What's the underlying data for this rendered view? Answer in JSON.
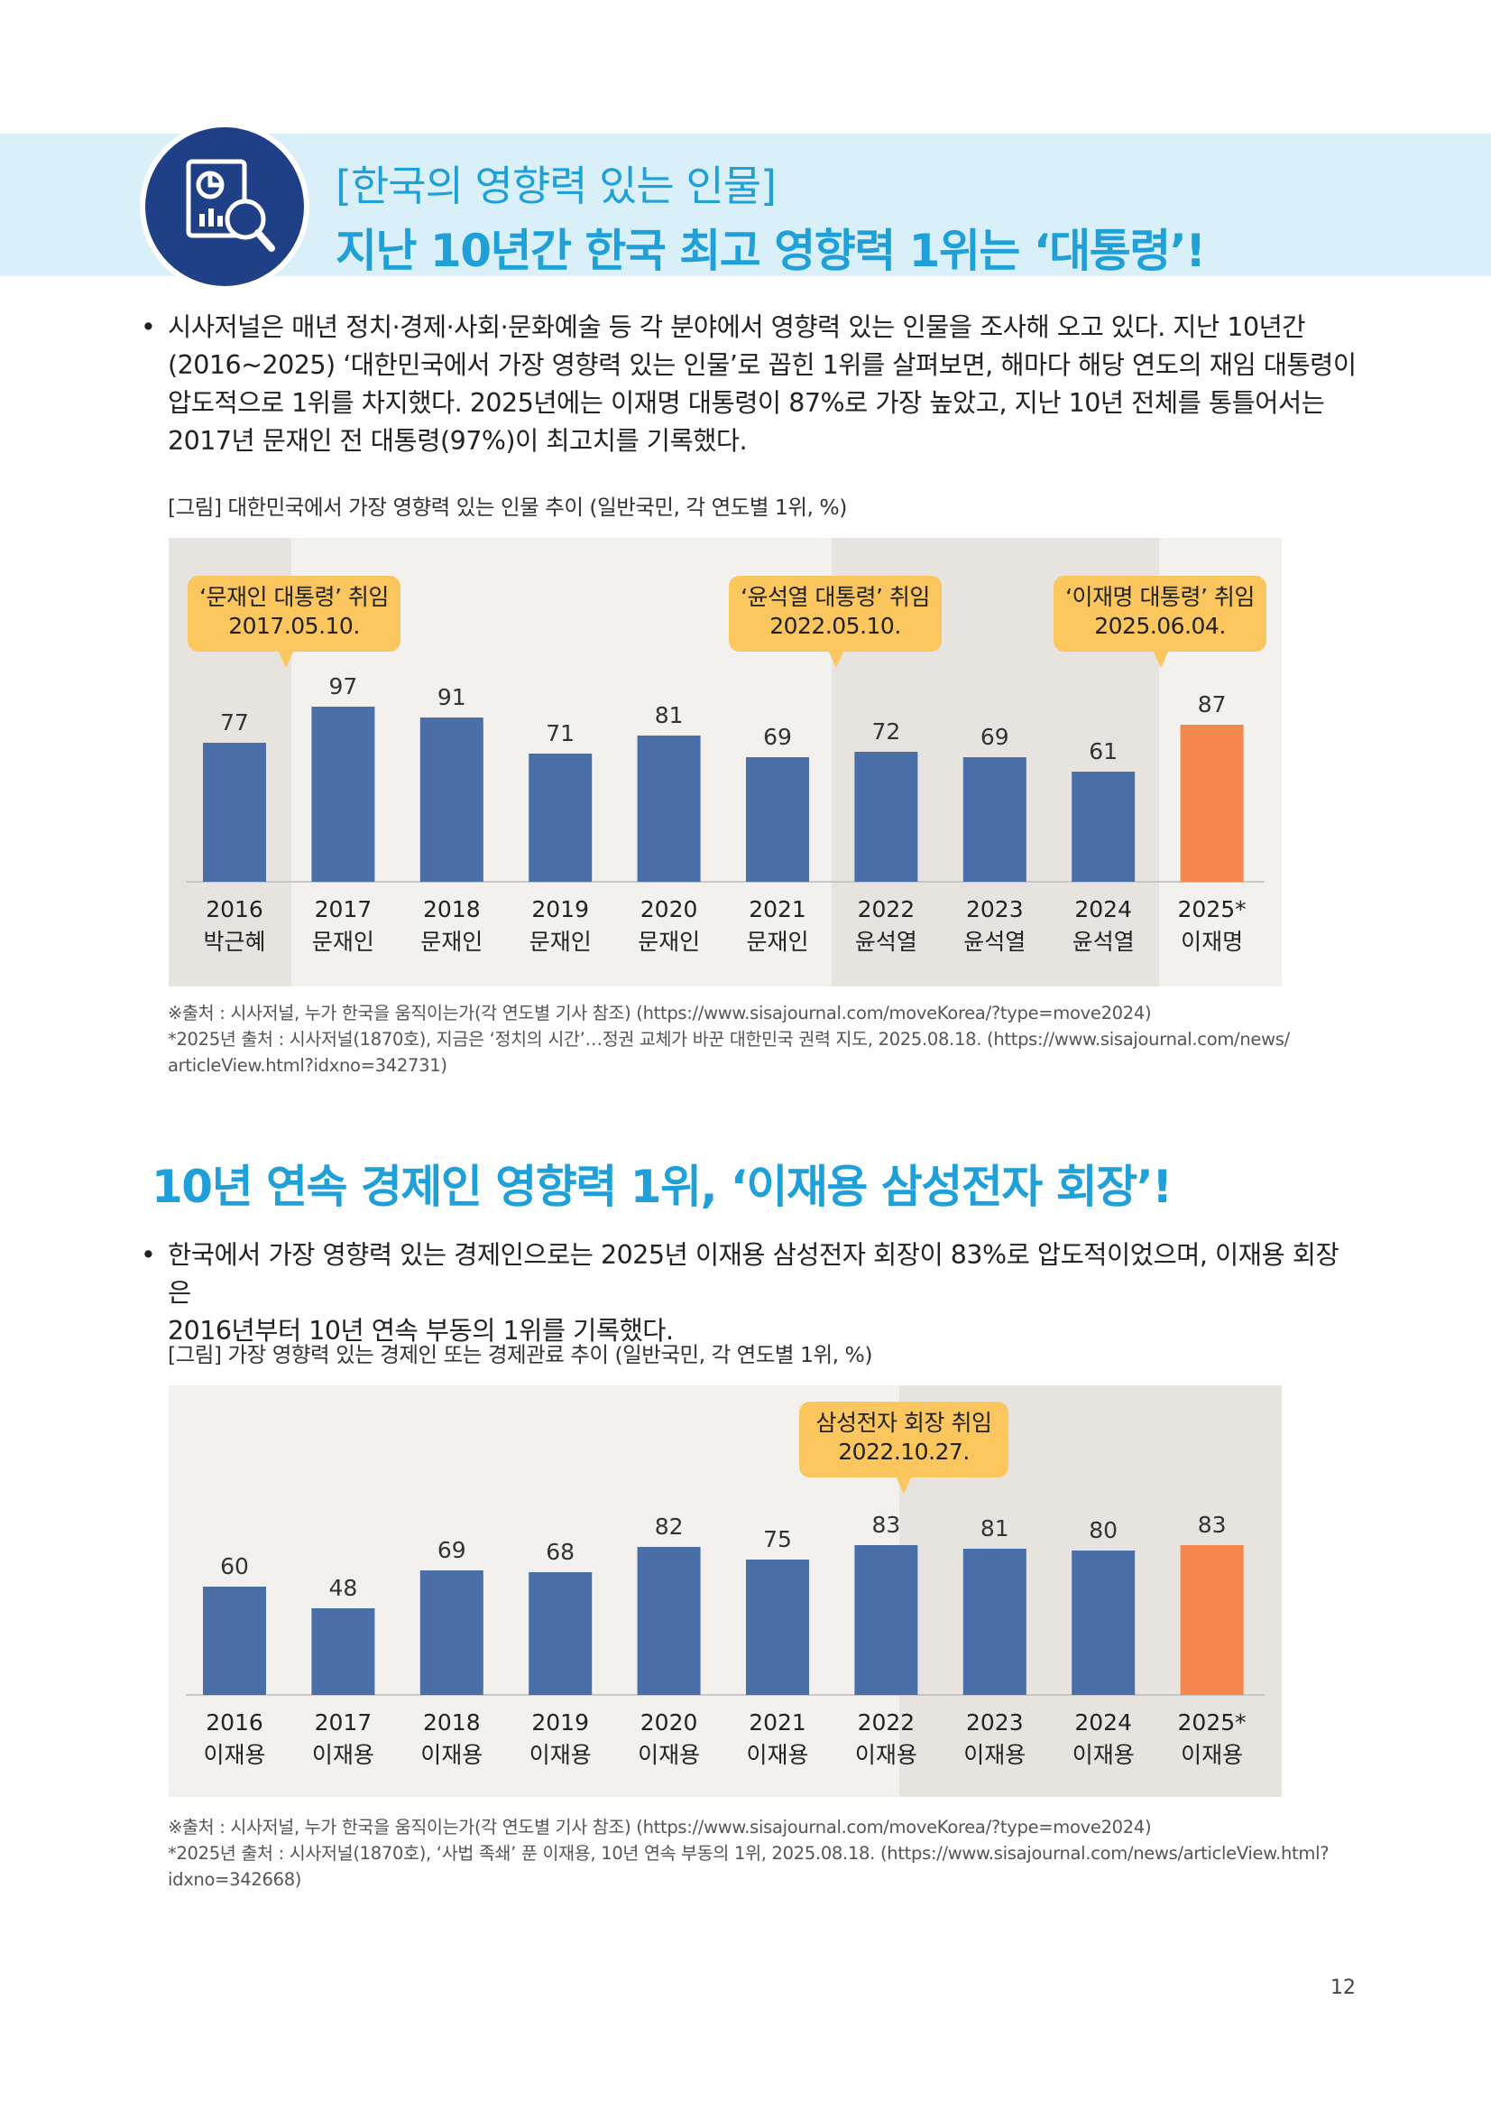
{
  "header": {
    "subtitle": "[한국의 영향력 있는 인물]",
    "title": "지난 10년간 한국 최고 영향력 1위는 ‘대통령’!",
    "icon": "report-magnifier-icon"
  },
  "section1": {
    "bullet": "•",
    "paragraph_lines": [
      "시사저널은 매년 정치·경제·사회·문화예술 등 각 분야에서 영향력 있는 인물을 조사해 오고 있다. 지난 10년간",
      "(2016~2025) ‘대한민국에서 가장 영향력 있는 인물’로 꼽힌 1위를 살펴보면, 해마다 해당 연도의 재임 대통령이",
      "압도적으로 1위를 차지했다. 2025년에는 이재명 대통령이 87%로 가장 높았고, 지난 10년 전체를 통틀어서는",
      "2017년 문재인 전 대통령(97%)이 최고치를 기록했다."
    ],
    "figure_caption": "[그림] 대한민국에서 가장 영향력 있는 인물 추이 (일반국민, 각 연도별 1위, %)",
    "callouts": [
      {
        "line1": "‘문재인 대통령’ 취임",
        "line2": "2017.05.10."
      },
      {
        "line1": "‘윤석열 대통령’ 취임",
        "line2": "2022.05.10."
      },
      {
        "line1": "‘이재명 대통령’ 취임",
        "line2": "2025.06.04."
      }
    ],
    "source_lines": [
      "※출처 : 시사저널, 누가 한국을 움직이는가(각 연도별 기사 참조) (https://www.sisajournal.com/moveKorea/?type=move2024)",
      "*2025년 출처 : 시사저널(1870호), 지금은 ‘정치의 시간’…정권 교체가 바꾼 대한민국 권력 지도, 2025.08.18. (https://www.sisajournal.com/news/",
      "articleView.html?idxno=342731)"
    ]
  },
  "section2": {
    "title": "10년 연속 경제인 영향력 1위, ‘이재용 삼성전자 회장’!",
    "bullet": "•",
    "paragraph_lines": [
      "한국에서 가장 영향력 있는 경제인으로는 2025년 이재용 삼성전자 회장이 83%로 압도적이었으며, 이재용 회장은",
      "2016년부터 10년 연속 부동의 1위를 기록했다."
    ],
    "figure_caption": "[그림] 가장 영향력 있는 경제인 또는 경제관료 추이 (일반국민, 각 연도별 1위, %)",
    "callouts": [
      {
        "line1": "삼성전자 회장 취임",
        "line2": "2022.10.27."
      }
    ],
    "source_lines": [
      "※출처 : 시사저널, 누가 한국을 움직이는가(각 연도별 기사 참조) (https://www.sisajournal.com/moveKorea/?type=move2024)",
      "*2025년 출처 : 시사저널(1870호), ‘사법 족쇄’ 푼 이재용, 10년 연속 부동의 1위, 2025.08.18. (https://www.sisajournal.com/news/articleView.html?",
      "idxno=342668)"
    ]
  },
  "page_number": "12",
  "colors": {
    "accent": "#1fa0d8",
    "bar": "#4a6ea8",
    "bar_highlight": "#f4874b",
    "callout": "#fbc65e",
    "panel": "#f2f1ee",
    "panel_shade": "#e7e4df"
  },
  "chart_data": [
    {
      "type": "bar",
      "categories": [
        "2016",
        "2017",
        "2018",
        "2019",
        "2020",
        "2021",
        "2022",
        "2023",
        "2024",
        "2025*"
      ],
      "names": [
        "박근혜",
        "문재인",
        "문재인",
        "문재인",
        "문재인",
        "문재인",
        "윤석열",
        "윤석열",
        "윤석열",
        "이재명"
      ],
      "values": [
        77,
        97,
        91,
        71,
        81,
        69,
        72,
        69,
        61,
        87
      ],
      "highlight_index": 9,
      "ylim": [
        0,
        100
      ]
    },
    {
      "type": "bar",
      "categories": [
        "2016",
        "2017",
        "2018",
        "2019",
        "2020",
        "2021",
        "2022",
        "2023",
        "2024",
        "2025*"
      ],
      "names": [
        "이재용",
        "이재용",
        "이재용",
        "이재용",
        "이재용",
        "이재용",
        "이재용",
        "이재용",
        "이재용",
        "이재용"
      ],
      "values": [
        60,
        48,
        69,
        68,
        82,
        75,
        83,
        81,
        80,
        83
      ],
      "highlight_index": 9,
      "ylim": [
        0,
        100
      ]
    }
  ]
}
